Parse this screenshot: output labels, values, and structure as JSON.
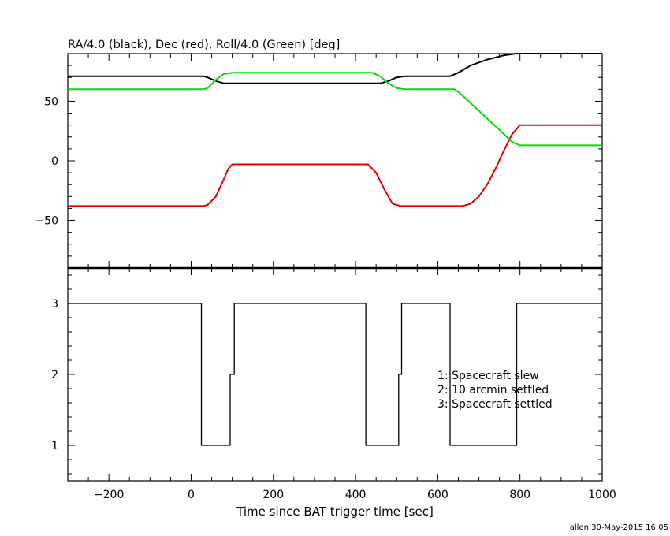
{
  "title": "RA/4.0 (black), Dec (red), Roll/4.0 (Green) [deg]",
  "footer": "allen 30-May-2015 16:05",
  "chart_data": [
    {
      "type": "line",
      "title": "RA/4.0 (black), Dec (red), Roll/4.0 (Green) [deg]",
      "xlim": [
        -300,
        1000
      ],
      "ylim": [
        -90,
        90
      ],
      "y_ticks": [
        -50,
        0,
        50
      ],
      "grid": false,
      "series": [
        {
          "name": "RA/4.0",
          "color": "#000000",
          "x": [
            -300,
            30,
            40,
            60,
            80,
            100,
            380,
            460,
            480,
            500,
            520,
            630,
            650,
            680,
            720,
            760,
            790,
            1000
          ],
          "y": [
            71,
            71,
            70,
            67,
            65,
            65,
            65,
            65,
            67,
            70,
            71,
            71,
            74,
            80,
            85,
            88.5,
            90,
            90
          ]
        },
        {
          "name": "Dec",
          "color": "#e00000",
          "x": [
            -300,
            30,
            40,
            60,
            80,
            90,
            100,
            380,
            430,
            450,
            470,
            490,
            510,
            640,
            660,
            680,
            700,
            720,
            740,
            760,
            780,
            800,
            1000
          ],
          "y": [
            -38,
            -38,
            -37,
            -30,
            -15,
            -7,
            -3,
            -3,
            -3,
            -10,
            -24,
            -36,
            -38,
            -38,
            -38,
            -36,
            -30,
            -20,
            -7,
            8,
            22,
            30,
            30
          ]
        },
        {
          "name": "Roll/4.0",
          "color": "#00dd00",
          "x": [
            -300,
            30,
            40,
            60,
            80,
            100,
            380,
            440,
            460,
            480,
            500,
            520,
            640,
            650,
            700,
            750,
            780,
            800,
            1000
          ],
          "y": [
            60,
            60,
            61,
            68,
            73,
            74,
            74,
            74,
            71,
            65,
            61,
            60,
            60,
            58,
            42,
            26,
            16,
            13,
            13
          ]
        }
      ]
    },
    {
      "type": "line",
      "xlabel": "Time since BAT trigger time [sec]",
      "xlim": [
        -300,
        1000
      ],
      "ylim": [
        0.5,
        3.5
      ],
      "x_ticks": [
        -200,
        0,
        200,
        400,
        600,
        800,
        1000
      ],
      "y_ticks": [
        1,
        2,
        3
      ],
      "grid": false,
      "annotations": [
        "1: Spacecraft slew",
        "2: 10 arcmin settled",
        "3: Spacecraft settled"
      ],
      "series": [
        {
          "color": "#000000",
          "step": true,
          "x": [
            -300,
            25,
            25,
            95,
            95,
            105,
            105,
            425,
            425,
            505,
            505,
            512,
            512,
            630,
            630,
            792,
            792,
            1000
          ],
          "y": [
            3,
            3,
            1,
            1,
            2,
            2,
            3,
            3,
            1,
            1,
            2,
            2,
            3,
            3,
            1,
            1,
            3,
            3
          ]
        }
      ]
    }
  ]
}
